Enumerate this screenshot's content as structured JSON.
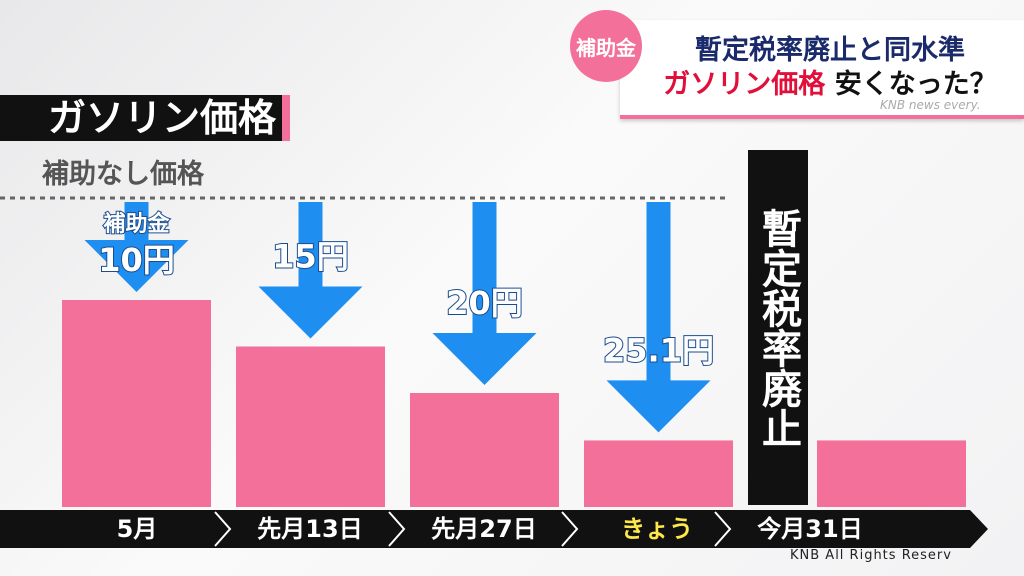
{
  "header": {
    "badge": "補助金",
    "line1": "暫定税率廃止と同水準",
    "line2_red": "ガソリン価格",
    "line2_black": "安くなった？",
    "watermark": "KNB news every."
  },
  "footer": "KNB All Rights Reserv",
  "chart_data": {
    "type": "bar",
    "title": "ガソリン価格",
    "subtitle": "補助なし価格",
    "annotation": "補助金",
    "event_label": "暫定税率廃止",
    "categories": [
      "5月",
      "先月13日",
      "先月27日",
      "きょう",
      "今月31日"
    ],
    "values": [
      10,
      15,
      20,
      25.1,
      25.1
    ],
    "value_labels": [
      "10円",
      "15円",
      "20円",
      "25.1円",
      null
    ],
    "color": "#f2709a",
    "arrow_color": "#1e8ff0",
    "highlight_category_color": "#ffe84a"
  }
}
